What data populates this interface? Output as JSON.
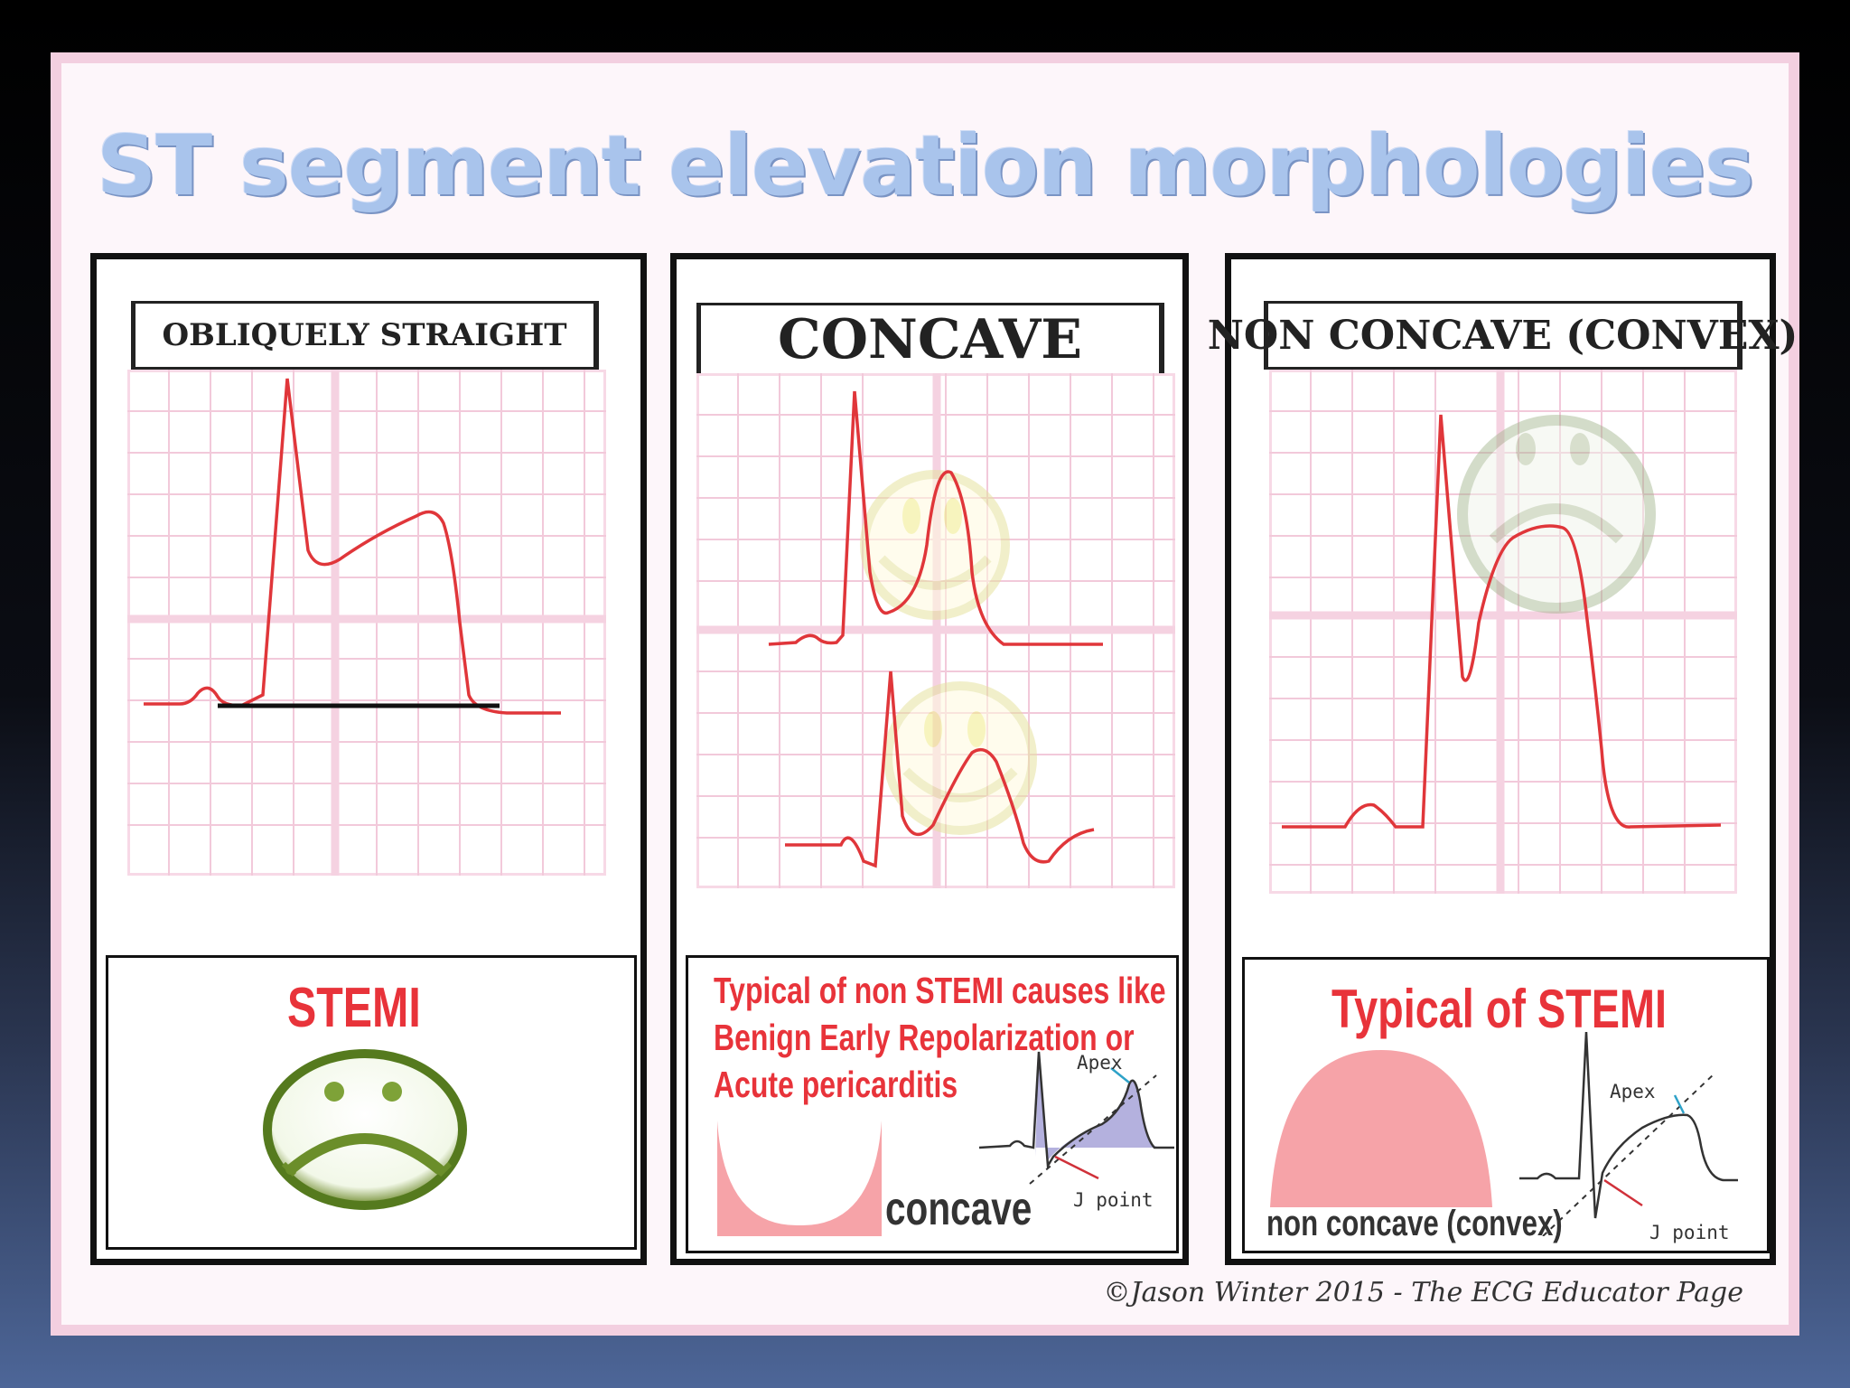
{
  "title": "ST segment elevation morphologies",
  "panels": [
    {
      "header": "OBLIQUELY STRAIGHT",
      "caption": "STEMI",
      "icon": "sad-face-icon"
    },
    {
      "header": "CONCAVE",
      "caption_lines": [
        "Typical of non STEMI causes like",
        "Benign Early Repolarization or",
        "Acute pericarditis"
      ],
      "shape_label": "concave",
      "apex_label": "Apex",
      "jpoint_label": "J point",
      "icon": "smiley-face-icon"
    },
    {
      "header": "NON CONCAVE (CONVEX)",
      "caption": "Typical of  STEMI",
      "shape_label": "non concave (convex)",
      "apex_label": "Apex",
      "jpoint_label": "J point",
      "icon": "sad-face-icon"
    }
  ],
  "credit": "©Jason Winter 2015 - The ECG Educator Page",
  "colors": {
    "title": "#a9c4ec",
    "ecg_trace": "#e0363a",
    "grid": "#f2c9da",
    "caption_red": "#e8333a",
    "shape_fill": "#f6a3a8",
    "ecg_fill": "#a7a3d8"
  }
}
